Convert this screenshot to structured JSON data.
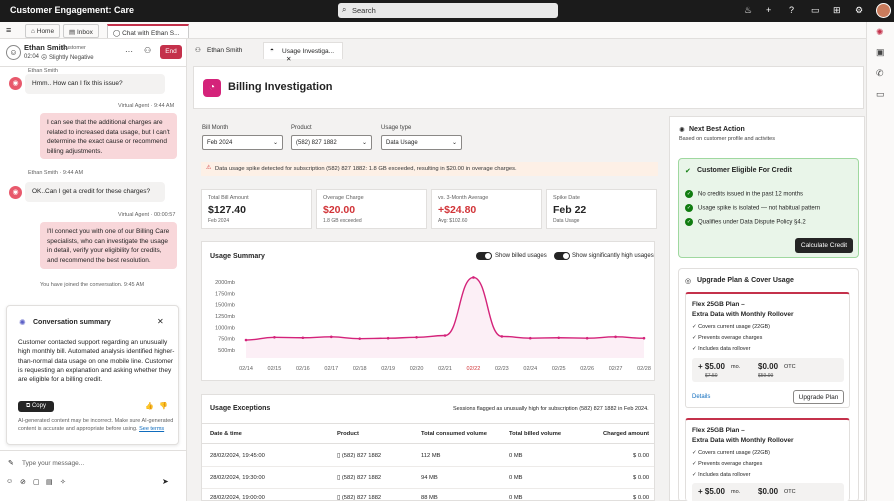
{
  "app": {
    "title": "Customer Engagement: Care"
  },
  "search": {
    "placeholder": "Search"
  },
  "tabs": {
    "home": "Home",
    "inbox": "Inbox",
    "chat": "Chat with Ethan S..."
  },
  "chat": {
    "customer_name": "Ethan Smith",
    "customer_role": "Customer",
    "timer": "02:04",
    "sentiment": "Slightly Negative",
    "end_label": "End",
    "top_sender": "Ethan Smith",
    "messages": [
      {
        "text": "Hmm.. How can I fix this issue?"
      },
      {
        "meta": "Virtual Agent · 9:44 AM",
        "text": "I can see that the additional charges are related to increased data usage, but I can't determine the exact cause or recommend billing adjustments."
      },
      {
        "meta": "Ethan Smith · 9:44 AM",
        "text": "OK..Can I get a credit for these charges?"
      },
      {
        "meta": "Virtual Agent · 00:00:57",
        "text": "I'll connect you with one of our Billing Care specialists, who can investigate the usage in detail, verify your eligibility for credits, and recommend the best resolution."
      }
    ],
    "joined": "You have joined the conversation. 9:45 AM",
    "input_placeholder": "Type your message..."
  },
  "summary": {
    "title": "Conversation summary",
    "body": "Customer contacted support regarding an unusually high monthly bill. Automated analysis identified higher-than-normal data usage on one mobile line. Customer is requesting an explanation and asking whether they are eligible for a billing credit.",
    "copy_label": "Copy",
    "disclaimer": "AI-generated content may be incorrect. Make sure AI-generated content is accurate and appropriate before using.",
    "see_terms": "See terms"
  },
  "subtabs": {
    "first": "Ethan Smith",
    "second": "Usage Investiga..."
  },
  "page": {
    "title": "Billing Investigation"
  },
  "filters": {
    "bill_month_label": "Bill Month",
    "bill_month": "Feb 2024",
    "product_label": "Product",
    "product": "(582) 827 1882",
    "usage_type_label": "Usage type",
    "usage_type": "Data Usage"
  },
  "warning": {
    "text": "Data usage spike detected for subscription (582) 827 1882: 1.8 GB exceeded, resulting in $20.00 in overage charges."
  },
  "kpis": [
    {
      "label": "Total Bill Amount",
      "value": "$127.40",
      "sub": "Feb 2024"
    },
    {
      "label": "Overage Charge",
      "value": "$20.00",
      "sub": "1.8 GB exceeded"
    },
    {
      "label": "vs. 3-Month Average",
      "value": "+$24.80",
      "sub": "Avg: $102.60"
    },
    {
      "label": "Spike Date",
      "value": "Feb 22",
      "sub": "Data Usage"
    }
  ],
  "usage_summary": {
    "title": "Usage Summary",
    "toggle_billed": "Show billed usages",
    "toggle_high": "Show significantly high usages"
  },
  "chart_data": {
    "type": "line",
    "title": "Usage Summary",
    "x": [
      "02/14",
      "02/15",
      "02/16",
      "02/17",
      "02/18",
      "02/19",
      "02/20",
      "02/21",
      "02/22",
      "02/23",
      "02/24",
      "02/25",
      "02/26",
      "02/27",
      "02/28"
    ],
    "y_tick_labels": [
      "500mb",
      "750mb",
      "1000mb",
      "1250mb",
      "1500mb",
      "1750mb",
      "2000mb"
    ],
    "ylim": [
      500,
      2000
    ],
    "series": [
      {
        "values": [
          720,
          780,
          770,
          790,
          750,
          760,
          780,
          820,
          2100,
          800,
          760,
          770,
          760,
          790,
          760
        ],
        "color": "#d4237a"
      }
    ],
    "highlight_tick": "02/22",
    "grid": false
  },
  "exceptions": {
    "title": "Usage Exceptions",
    "note": "Sessions flagged as unusually high for subscription (582) 827 1882 in Feb 2024.",
    "headers": [
      "Date & time",
      "Product",
      "Total consumed volume",
      "Total billed volume",
      "Charged amount"
    ],
    "rows": [
      [
        "28/02/2024, 19:45:00",
        "(582) 827 1882",
        "112 MB",
        "0 MB",
        "$ 0.00"
      ],
      [
        "28/02/2024, 19:30:00",
        "(582) 827 1882",
        "94 MB",
        "0 MB",
        "$ 0.00"
      ],
      [
        "28/02/2024, 19:00:00",
        "(582) 827 1882",
        "88 MB",
        "0 MB",
        "$ 0.00"
      ]
    ]
  },
  "nba": {
    "title": "Next Best Action",
    "subtitle": "Based on customer profile and activites",
    "credit_title": "Customer Eligible For Credit",
    "credit_items": [
      "No credits issued in the past 12 months",
      "Usage spike is isolated — not habitual pattern",
      "Qualifies under Data Dispute Policy §4.2"
    ],
    "credit_button": "Calculate Credit",
    "upgrade_title": "Upgrade Plan & Cover Usage",
    "plans": [
      {
        "title1": "Flex 25GB Plan –",
        "title2": "Extra Data with Monthly Rollover",
        "features": [
          "Covers current usage (22GB)",
          "Prevents overage charges",
          "Includes data rollover"
        ],
        "price": "+ $5.00",
        "per": "mo.",
        "old_price": "$7.50",
        "otc": "$0.00",
        "otc_label": "OTC",
        "old_otc": "$59.99",
        "details": "Details",
        "button": "Upgrade Plan"
      },
      {
        "title1": "Flex 25GB Plan –",
        "title2": "Extra Data with Monthly Rollover",
        "features": [
          "Covers current usage (22GB)",
          "Prevents overage charges",
          "Includes data rollover"
        ],
        "price": "+ $5.00",
        "per": "mo.",
        "otc": "$0.00",
        "otc_label": "OTC"
      }
    ]
  },
  "colors": {
    "accent": "#c4314b",
    "line": "#d4237a",
    "dark": "#1b1b1b"
  }
}
